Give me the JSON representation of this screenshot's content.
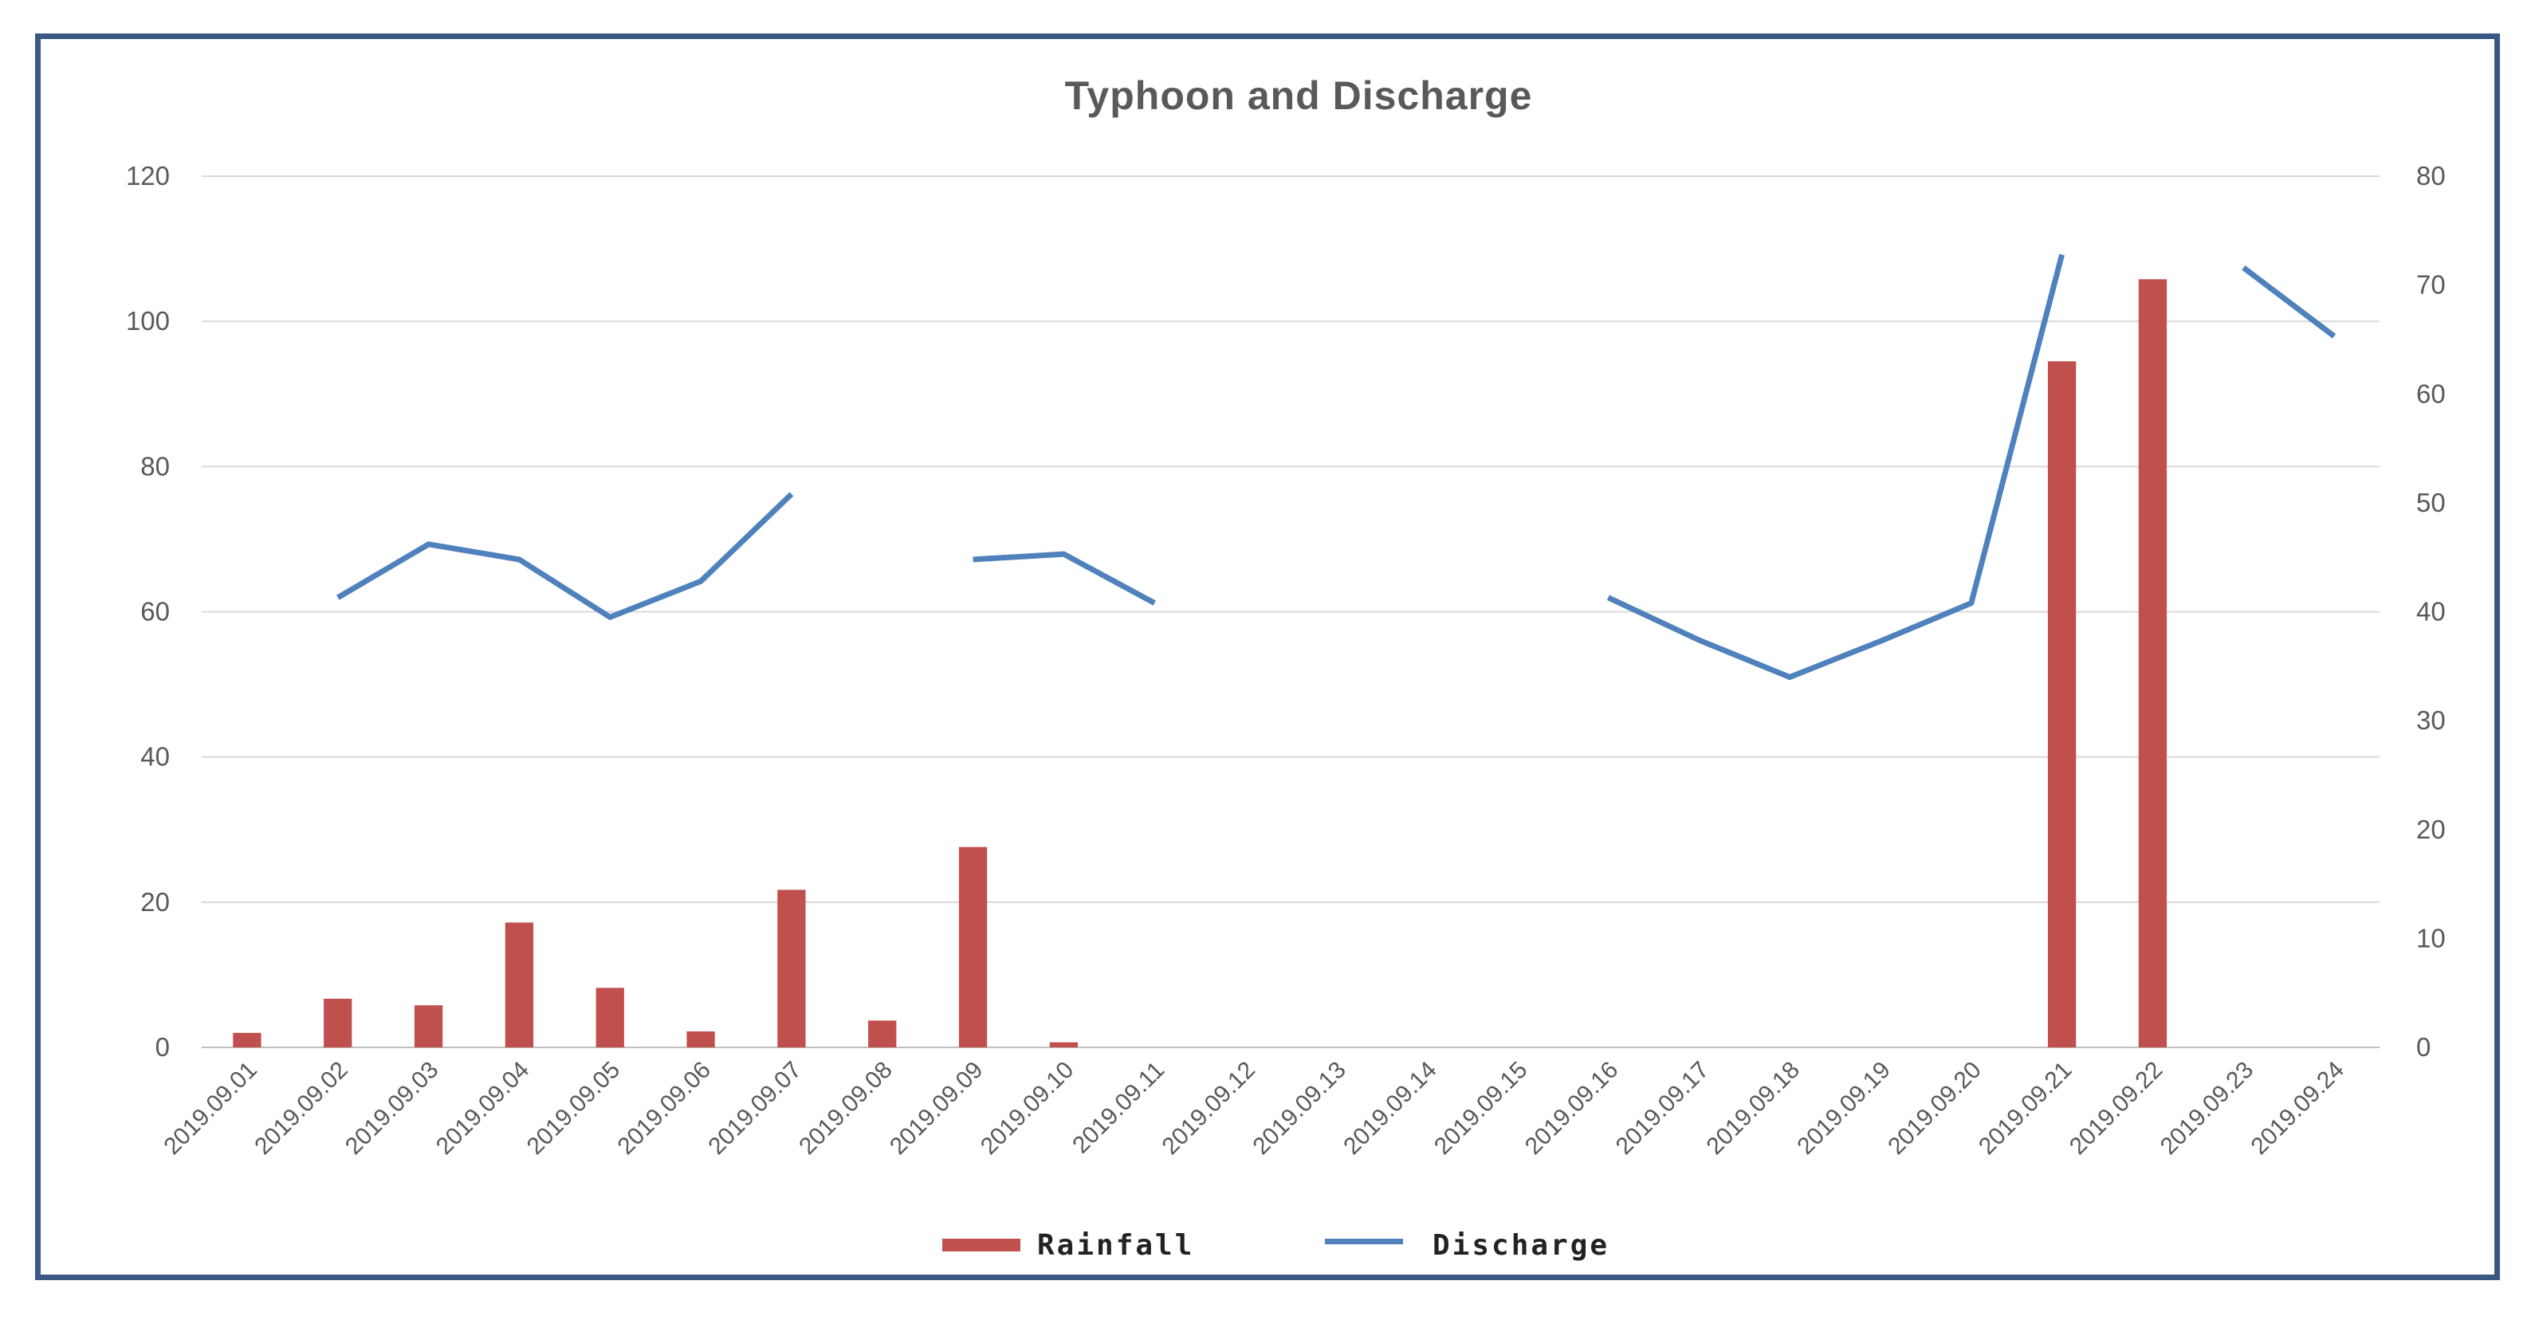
{
  "chart_data": {
    "type": "bar+line",
    "title": "Typhoon and Discharge",
    "categories": [
      "2019.09.01",
      "2019.09.02",
      "2019.09.03",
      "2019.09.04",
      "2019.09.05",
      "2019.09.06",
      "2019.09.07",
      "2019.09.08",
      "2019.09.09",
      "2019.09.10",
      "2019.09.11",
      "2019.09.12",
      "2019.09.13",
      "2019.09.14",
      "2019.09.15",
      "2019.09.16",
      "2019.09.17",
      "2019.09.18",
      "2019.09.19",
      "2019.09.20",
      "2019.09.21",
      "2019.09.22",
      "2019.09.23",
      "2019.09.24"
    ],
    "series": [
      {
        "name": "Rainfall",
        "type": "bar",
        "axis": "left",
        "color": "#c0504d",
        "values": [
          2,
          6.7,
          5.8,
          17.2,
          8.2,
          2.2,
          21.7,
          3.7,
          27.6,
          0.7,
          0,
          0,
          0,
          0,
          0,
          0,
          0,
          0,
          0,
          0,
          94.5,
          105.8,
          0,
          0
        ]
      },
      {
        "name": "Discharge",
        "type": "line",
        "axis": "right",
        "color": "#4f81bd",
        "values": [
          null,
          41.3,
          46.2,
          44.8,
          39.5,
          42.8,
          50.8,
          null,
          44.8,
          45.3,
          40.8,
          null,
          null,
          null,
          null,
          41.3,
          37.4,
          34.0,
          37.3,
          40.8,
          72.8,
          null,
          71.6,
          65.3
        ]
      }
    ],
    "y_left": {
      "min": 0,
      "max": 120,
      "ticks": [
        "0",
        "20",
        "40",
        "60",
        "80",
        "100",
        "120"
      ]
    },
    "y_right": {
      "min": 0,
      "max": 80,
      "ticks": [
        "0",
        "10",
        "20",
        "30",
        "40",
        "50",
        "60",
        "70",
        "80"
      ]
    },
    "grid": true,
    "legend_position": "bottom-center"
  }
}
